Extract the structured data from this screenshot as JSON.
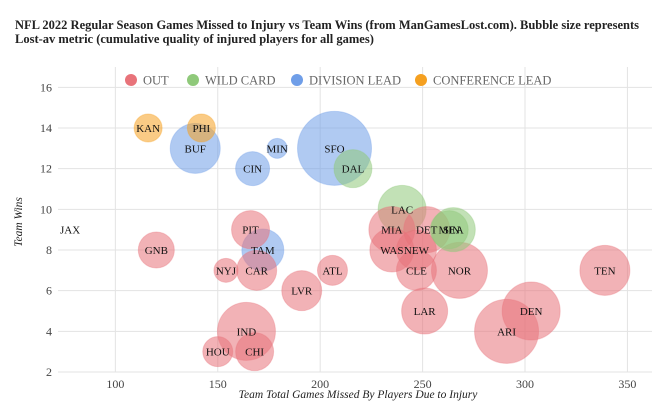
{
  "chart_data": {
    "type": "scatter",
    "title": "NFL 2022 Regular Season Games Missed to Injury vs Team Wins (from ManGamesLost.com). Bubble size represents Lost-av metric (cumulative quality of injured players for all games)",
    "title_lines": [
      "NFL 2022 Regular Season Games Missed to Injury vs Team Wins (from ManGamesLost.com). Bubble size represents",
      "Lost-av metric (cumulative quality of injured players for all games)"
    ],
    "xlabel": "Team Total Games Missed By Players Due to Injury",
    "ylabel": "Team Wins",
    "xlim": [
      72,
      362
    ],
    "ylim": [
      2,
      17
    ],
    "xticks": [
      100,
      150,
      200,
      250,
      300,
      350
    ],
    "yticks": [
      2,
      4,
      6,
      8,
      10,
      12,
      14,
      16
    ],
    "grid": true,
    "legend_position": "top",
    "colors": {
      "OUT": "#e8737a",
      "WILD CARD": "#8fc97a",
      "DIVISION LEAD": "#6f9ee8",
      "CONFERENCE LEAD": "#f5a020"
    },
    "series": [
      {
        "name": "OUT",
        "points": [
          {
            "label": "JAX",
            "x": 72,
            "y": 9,
            "size": 0
          },
          {
            "label": "GNB",
            "x": 120,
            "y": 8,
            "size": 18
          },
          {
            "label": "NYJ",
            "x": 154,
            "y": 7,
            "size": 12
          },
          {
            "label": "PIT",
            "x": 166,
            "y": 9,
            "size": 19
          },
          {
            "label": "CAR",
            "x": 169,
            "y": 7,
            "size": 20
          },
          {
            "label": "IND",
            "x": 164,
            "y": 4,
            "size": 29
          },
          {
            "label": "HOU",
            "x": 150,
            "y": 3,
            "size": 15
          },
          {
            "label": "CHI",
            "x": 168,
            "y": 3,
            "size": 19
          },
          {
            "label": "LVR",
            "x": 191,
            "y": 6,
            "size": 20
          },
          {
            "label": "ATL",
            "x": 206,
            "y": 7,
            "size": 15
          },
          {
            "label": "MIA",
            "x": 235,
            "y": 9,
            "size": 23
          },
          {
            "label": "WAS",
            "x": 235,
            "y": 8,
            "size": 22
          },
          {
            "label": "NEW",
            "x": 247,
            "y": 8,
            "size": 20
          },
          {
            "label": "CLE",
            "x": 247,
            "y": 7,
            "size": 20
          },
          {
            "label": "DET",
            "x": 252,
            "y": 9,
            "size": 23
          },
          {
            "label": "NOR",
            "x": 268,
            "y": 7,
            "size": 28
          },
          {
            "label": "LAR",
            "x": 251,
            "y": 5,
            "size": 23
          },
          {
            "label": "TEN",
            "x": 339,
            "y": 7,
            "size": 25
          },
          {
            "label": "DEN",
            "x": 303,
            "y": 5,
            "size": 29
          },
          {
            "label": "ARI",
            "x": 291,
            "y": 4,
            "size": 32
          }
        ]
      },
      {
        "name": "WILD CARD",
        "points": [
          {
            "label": "DAL",
            "x": 216,
            "y": 12,
            "size": 19
          },
          {
            "label": "SEA",
            "x": 265,
            "y": 9,
            "size": 22
          },
          {
            "label": "MIN",
            "x": 263,
            "y": 9,
            "size": 19
          },
          {
            "label": "LAC",
            "x": 240,
            "y": 10,
            "size": 24
          }
        ]
      },
      {
        "name": "DIVISION LEAD",
        "points": [
          {
            "label": "BUF",
            "x": 139,
            "y": 13,
            "size": 25
          },
          {
            "label": "CIN",
            "x": 167,
            "y": 12,
            "size": 17
          },
          {
            "label": "MIN",
            "x": 179,
            "y": 13,
            "size": 10
          },
          {
            "label": "SFO",
            "x": 207,
            "y": 13,
            "size": 37
          },
          {
            "label": "TAM",
            "x": 172,
            "y": 8,
            "size": 21
          }
        ]
      },
      {
        "name": "CONFERENCE LEAD",
        "points": [
          {
            "label": "KAN",
            "x": 116,
            "y": 14,
            "size": 14
          },
          {
            "label": "PHI",
            "x": 142,
            "y": 14,
            "size": 14
          }
        ]
      }
    ]
  }
}
